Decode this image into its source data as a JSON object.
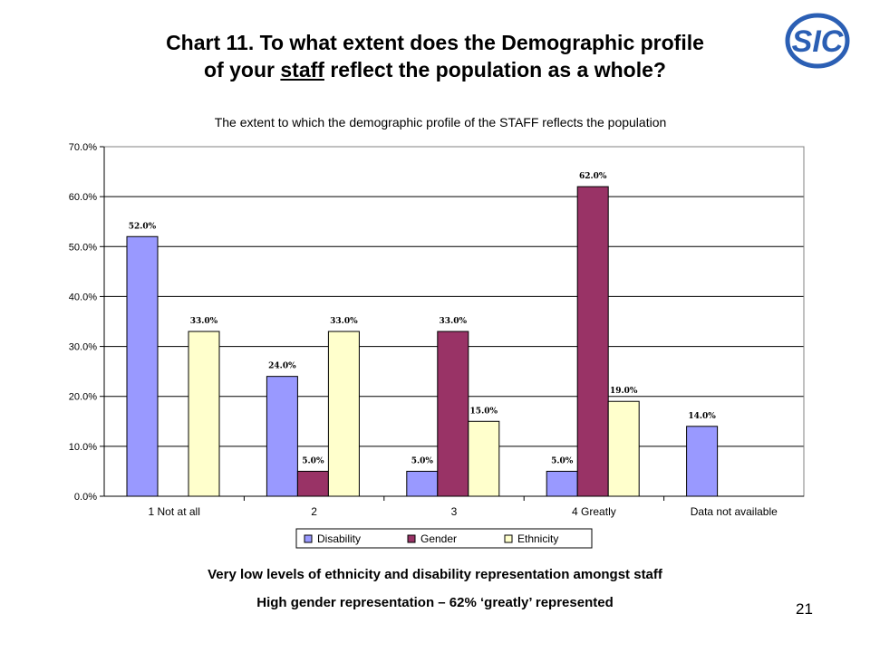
{
  "slide": {
    "title_line1": "Chart 11. To what extent does the Demographic profile",
    "title_line2_pre": "of your ",
    "title_line2_underlined": "staff",
    "title_line2_post": " reflect the population as a whole?",
    "caption1": "Very low levels of ethnicity and disability representation amongst staff",
    "caption2": "High gender representation – 62% ‘greatly’ represented",
    "page_number": "21",
    "logo_text": "SIC",
    "logo_color": "#2b5fb4"
  },
  "chart_data": {
    "type": "bar",
    "title": "The extent to which the demographic profile of the STAFF reflects the population",
    "categories": [
      "1 Not at all",
      "2",
      "3",
      "4 Greatly",
      "Data not available"
    ],
    "series": [
      {
        "name": "Disability",
        "color": "#9999ff",
        "values": [
          52.0,
          24.0,
          5.0,
          5.0,
          14.0
        ]
      },
      {
        "name": "Gender",
        "color": "#993366",
        "values": [
          null,
          5.0,
          33.0,
          62.0,
          null
        ]
      },
      {
        "name": "Ethnicity",
        "color": "#ffffcc",
        "values": [
          33.0,
          33.0,
          15.0,
          19.0,
          null
        ]
      }
    ],
    "ylim": [
      0,
      70
    ],
    "yticks": [
      0,
      10,
      20,
      30,
      40,
      50,
      60,
      70
    ],
    "ytick_format": "0.0%",
    "data_label_format": "0.0%",
    "grid": true,
    "legend_position": "bottom"
  }
}
